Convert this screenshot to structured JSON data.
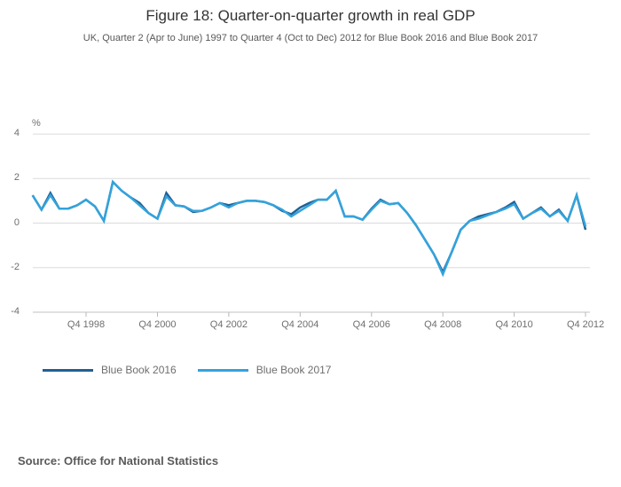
{
  "header": {
    "title": "Figure 18: Quarter-on-quarter growth in real GDP",
    "subtitle": "UK, Quarter 2 (Apr to June) 1997 to Quarter 4 (Oct to Dec) 2012 for Blue Book 2016 and Blue Book 2017"
  },
  "source": {
    "label": "Source: Office for National Statistics"
  },
  "chart_data": {
    "type": "line",
    "title": "Figure 18: Quarter-on-quarter growth in real GDP",
    "subtitle": "UK, Quarter 2 (Apr to June) 1997 to Quarter 4 (Oct to Dec) 2012 for Blue Book 2016 and Blue Book 2017",
    "unit_label": "%",
    "ylabel": "%",
    "ylim": [
      -4,
      4
    ],
    "yticks": [
      4,
      2,
      0,
      -2,
      -4
    ],
    "grid": "horizontal",
    "legend_position": "bottom-left",
    "xticks": [
      "Q4 1998",
      "Q4 2000",
      "Q4 2002",
      "Q4 2004",
      "Q4 2006",
      "Q4 2008",
      "Q4 2010",
      "Q4 2012"
    ],
    "x": [
      "1997 Q2",
      "1997 Q3",
      "1997 Q4",
      "1998 Q1",
      "1998 Q2",
      "1998 Q3",
      "1998 Q4",
      "1999 Q1",
      "1999 Q2",
      "1999 Q3",
      "1999 Q4",
      "2000 Q1",
      "2000 Q2",
      "2000 Q3",
      "2000 Q4",
      "2001 Q1",
      "2001 Q2",
      "2001 Q3",
      "2001 Q4",
      "2002 Q1",
      "2002 Q2",
      "2002 Q3",
      "2002 Q4",
      "2003 Q1",
      "2003 Q2",
      "2003 Q3",
      "2003 Q4",
      "2004 Q1",
      "2004 Q2",
      "2004 Q3",
      "2004 Q4",
      "2005 Q1",
      "2005 Q2",
      "2005 Q3",
      "2005 Q4",
      "2006 Q1",
      "2006 Q2",
      "2006 Q3",
      "2006 Q4",
      "2007 Q1",
      "2007 Q2",
      "2007 Q3",
      "2007 Q4",
      "2008 Q1",
      "2008 Q2",
      "2008 Q3",
      "2008 Q4",
      "2009 Q1",
      "2009 Q2",
      "2009 Q3",
      "2009 Q4",
      "2010 Q1",
      "2010 Q2",
      "2010 Q3",
      "2010 Q4",
      "2011 Q1",
      "2011 Q2",
      "2011 Q3",
      "2011 Q4",
      "2012 Q1",
      "2012 Q2",
      "2012 Q3",
      "2012 Q4"
    ],
    "series": [
      {
        "name": "Blue Book 2016",
        "color": "#206095",
        "values": [
          1.25,
          0.6,
          1.35,
          0.65,
          0.65,
          0.8,
          1.05,
          0.75,
          0.1,
          1.85,
          1.45,
          1.15,
          0.9,
          0.45,
          0.2,
          1.35,
          0.8,
          0.75,
          0.5,
          0.55,
          0.7,
          0.9,
          0.8,
          0.9,
          1.0,
          1.0,
          0.95,
          0.8,
          0.55,
          0.4,
          0.7,
          0.9,
          1.05,
          1.05,
          1.45,
          0.3,
          0.3,
          0.15,
          0.65,
          1.05,
          0.85,
          0.9,
          0.45,
          -0.1,
          -0.75,
          -1.4,
          -2.2,
          -1.3,
          -0.3,
          0.1,
          0.3,
          0.4,
          0.5,
          0.7,
          0.95,
          0.2,
          0.45,
          0.7,
          0.3,
          0.6,
          0.1,
          1.25,
          -0.3
        ]
      },
      {
        "name": "Blue Book 2017",
        "color": "#33A3DC",
        "values": [
          1.25,
          0.6,
          1.25,
          0.65,
          0.65,
          0.8,
          1.05,
          0.75,
          0.1,
          1.85,
          1.45,
          1.15,
          0.8,
          0.45,
          0.2,
          1.2,
          0.8,
          0.75,
          0.55,
          0.55,
          0.7,
          0.9,
          0.7,
          0.9,
          1.0,
          1.0,
          0.95,
          0.8,
          0.6,
          0.3,
          0.55,
          0.8,
          1.05,
          1.05,
          1.45,
          0.3,
          0.3,
          0.15,
          0.6,
          1.0,
          0.85,
          0.9,
          0.45,
          -0.1,
          -0.75,
          -1.4,
          -2.3,
          -1.3,
          -0.3,
          0.1,
          0.2,
          0.35,
          0.5,
          0.65,
          0.85,
          0.2,
          0.45,
          0.65,
          0.3,
          0.55,
          0.1,
          1.25,
          -0.15
        ]
      }
    ]
  }
}
